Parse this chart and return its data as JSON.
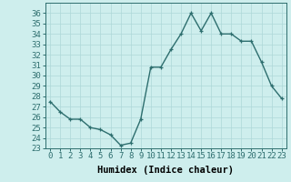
{
  "x": [
    0,
    1,
    2,
    3,
    4,
    5,
    6,
    7,
    8,
    9,
    10,
    11,
    12,
    13,
    14,
    15,
    16,
    17,
    18,
    19,
    20,
    21,
    22,
    23
  ],
  "y": [
    27.5,
    26.5,
    25.8,
    25.8,
    25.0,
    24.8,
    24.3,
    23.3,
    23.5,
    25.8,
    30.8,
    30.8,
    32.5,
    34.0,
    36.0,
    34.3,
    36.0,
    34.0,
    34.0,
    33.3,
    33.3,
    31.3,
    29.0,
    27.8
  ],
  "line_color": "#2d6e6e",
  "marker": "+",
  "bg_color": "#ceeeed",
  "grid_color": "#aed8d8",
  "xlabel": "Humidex (Indice chaleur)",
  "ylim": [
    23,
    37
  ],
  "xlim": [
    -0.5,
    23.5
  ],
  "yticks": [
    23,
    24,
    25,
    26,
    27,
    28,
    29,
    30,
    31,
    32,
    33,
    34,
    35,
    36
  ],
  "xticks": [
    0,
    1,
    2,
    3,
    4,
    5,
    6,
    7,
    8,
    9,
    10,
    11,
    12,
    13,
    14,
    15,
    16,
    17,
    18,
    19,
    20,
    21,
    22,
    23
  ],
  "xlabel_fontsize": 7.5,
  "tick_fontsize": 6.5,
  "line_width": 1.0,
  "marker_size": 3.5
}
